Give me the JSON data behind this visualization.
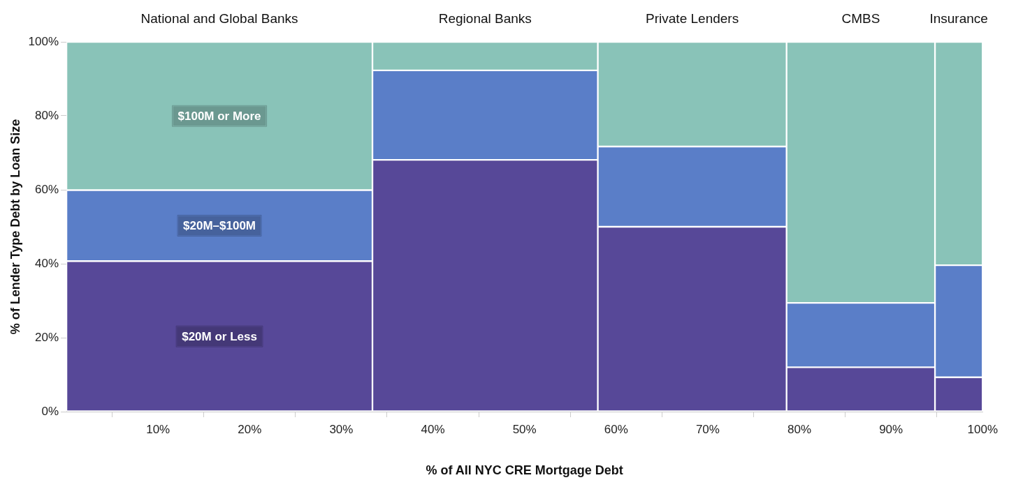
{
  "chart_data": {
    "type": "bar",
    "stacked": true,
    "xlabel": "% of All NYC CRE Mortgage Debt",
    "ylabel": "% of Lender Type Debt by Loan Size",
    "annotations": [
      {
        "text": "National and Global Banks",
        "x": 16.7,
        "y": 100
      },
      {
        "text": "Regional Banks",
        "x": 45.7,
        "y": 100
      },
      {
        "text": "Private Lenders",
        "x": 68.3,
        "y": 100
      },
      {
        "text": "CMBS",
        "x": 86.7,
        "y": 100
      },
      {
        "text": "Insurance",
        "x": 97.4,
        "y": 100
      }
    ],
    "x": [
      16.7,
      45.7,
      68.3,
      86.7,
      97.4
    ],
    "series": [
      {
        "name": "$20M or Less",
        "color": "#574898",
        "values": [
          40.7,
          68.1,
          50.0,
          12.0,
          9.3
        ]
      },
      {
        "name": "$20M–$100M",
        "color": "#5a7ec8",
        "values": [
          19.2,
          24.2,
          21.7,
          17.4,
          30.3
        ]
      },
      {
        "name": "$100M or More",
        "color": "#89c3b8",
        "values": [
          40.1,
          7.7,
          28.3,
          70.6,
          60.4
        ]
      }
    ],
    "xlim": [
      0,
      100
    ],
    "xticks": [
      {
        "value": 10,
        "label": "10%"
      },
      {
        "value": 20,
        "label": "20%"
      },
      {
        "value": 30,
        "label": "30%"
      },
      {
        "value": 40,
        "label": "40%"
      },
      {
        "value": 50,
        "label": "50%"
      },
      {
        "value": 60,
        "label": "60%"
      },
      {
        "value": 70,
        "label": "70%"
      },
      {
        "value": 80,
        "label": "80%"
      },
      {
        "value": 90,
        "label": "90%"
      },
      {
        "value": 100,
        "label": "100%"
      }
    ],
    "ylim": [
      0,
      100
    ],
    "yticks": [
      {
        "value": 0,
        "label": "0%"
      },
      {
        "value": 20,
        "label": "20%"
      },
      {
        "value": 40,
        "label": "40%"
      },
      {
        "value": 60,
        "label": "60%"
      },
      {
        "value": 80,
        "label": "80%"
      },
      {
        "value": 100,
        "label": "100%"
      }
    ]
  }
}
